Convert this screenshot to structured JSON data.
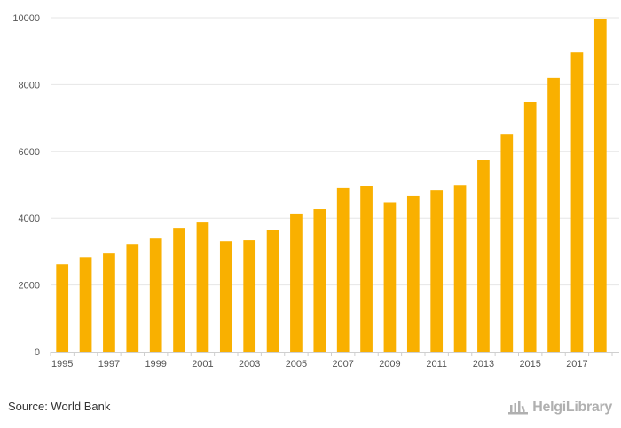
{
  "chart_data": {
    "type": "bar",
    "categories": [
      "1995",
      "1996",
      "1997",
      "1998",
      "1999",
      "2000",
      "2001",
      "2002",
      "2003",
      "2004",
      "2005",
      "2006",
      "2007",
      "2008",
      "2009",
      "2010",
      "2011",
      "2012",
      "2013",
      "2014",
      "2015",
      "2016",
      "2017",
      "2018"
    ],
    "values": [
      2620,
      2830,
      2940,
      3230,
      3390,
      3710,
      3870,
      3310,
      3340,
      3660,
      4140,
      4270,
      4910,
      4960,
      4470,
      4670,
      4850,
      4980,
      5730,
      6520,
      7480,
      8200,
      8960,
      9950
    ],
    "x_tick_labels": [
      "1995",
      "1997",
      "1999",
      "2001",
      "2003",
      "2005",
      "2007",
      "2009",
      "2011",
      "2013",
      "2015",
      "2017"
    ],
    "y_ticks": [
      0,
      2000,
      4000,
      6000,
      8000,
      10000
    ],
    "ylim": [
      0,
      10000
    ],
    "bar_color": "#f9b000",
    "grid": "horizontal",
    "legend": "none"
  },
  "footer": {
    "source": "Source: World Bank",
    "brand": "HelgiLibrary",
    "brand_color": "#b0b0b0"
  }
}
